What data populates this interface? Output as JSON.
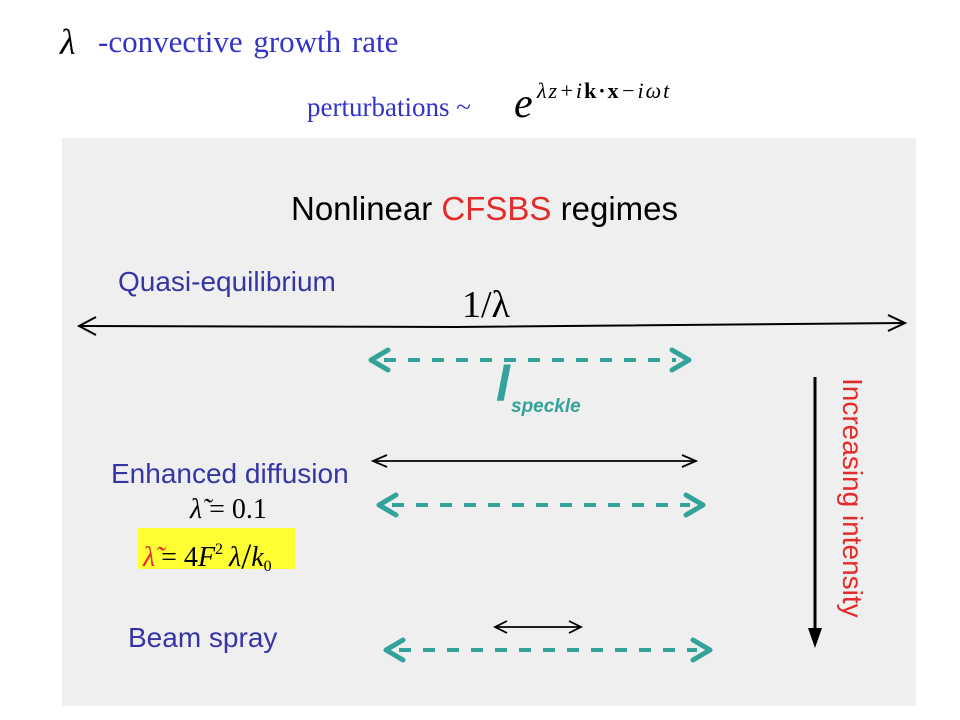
{
  "header": {
    "lambda_symbol": "λ",
    "definition": "-convective growth rate",
    "perturbations_label": "perturbations ~",
    "exp_base": "e",
    "exp_part1": "λz+i",
    "exp_part2": "k·x",
    "exp_part3": "−iωt"
  },
  "diagram": {
    "title_pre": "Nonlinear ",
    "title_highlight": "CFSBS",
    "title_post": " regimes",
    "regimes": [
      {
        "label": "Quasi-equilibrium"
      },
      {
        "label": "Enhanced diffusion"
      },
      {
        "label": "Beam spray"
      }
    ],
    "inverse_growth_label": "1/λ",
    "speckle_symbol": "l",
    "speckle_subscript": "speckle",
    "intensity_label": "Increasing intensity",
    "threshold_eq": {
      "lhs": "λ̃",
      "rhs": "= 0.1"
    },
    "definition_eq": {
      "lhs": "λ̃",
      "eq": "= 4",
      "var": "F",
      "sup": "2",
      "lambda": "λ",
      "slash": "/",
      "k": "k",
      "sub": "0"
    }
  },
  "colors": {
    "blue": "#3333cc",
    "label_blue": "#3535a5",
    "red": "#e42b2b",
    "teal": "#33a39a",
    "panel": "#efefef",
    "yellow": "#ffff33"
  },
  "icons": [
    "double-arrow-icon",
    "dashed-double-arrow-icon",
    "down-arrow-icon"
  ]
}
